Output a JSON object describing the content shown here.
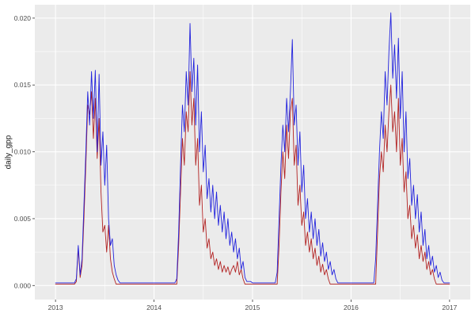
{
  "figure": {
    "bg": "#FFFFFF",
    "panel_bg": "#EBEBEB",
    "grid_major_color": "#FFFFFF",
    "grid_minor_color": "#FFFFFF",
    "tick_mark_color": "#333333",
    "tick_text_color": "#4D4D4D",
    "axis_title_color": "#1A1A1A"
  },
  "chart_data": {
    "type": "line",
    "title": "",
    "xlabel": "",
    "ylabel": "daily_gpp",
    "grid": true,
    "legend_position": "none",
    "xlim": [
      2012.79,
      2017.21
    ],
    "ylim": [
      -0.00105,
      0.021
    ],
    "x_ticks": [
      {
        "v": 2013,
        "label": "2013"
      },
      {
        "v": 2014,
        "label": "2014"
      },
      {
        "v": 2015,
        "label": "2015"
      },
      {
        "v": 2016,
        "label": "2016"
      },
      {
        "v": 2017,
        "label": "2017"
      }
    ],
    "y_ticks": [
      {
        "v": 0.0,
        "label": "0.000"
      },
      {
        "v": 0.005,
        "label": "0.005"
      },
      {
        "v": 0.01,
        "label": "0.010"
      },
      {
        "v": 0.015,
        "label": "0.015"
      },
      {
        "v": 0.02,
        "label": "0.020"
      }
    ],
    "x_minor": [
      2013.5,
      2014.5,
      2015.5,
      2016.5
    ],
    "y_minor": [
      0.0025,
      0.0075,
      0.0125,
      0.0175
    ],
    "x_unit": "year",
    "x0": 2013.0,
    "dx": 0.0192307692,
    "series": [
      {
        "name": "series-red",
        "color": "#B22222",
        "values": [
          0.0001,
          0.0001,
          0.0001,
          0.0001,
          0.0001,
          0.0001,
          0.0001,
          0.0001,
          0.0001,
          0.0001,
          0.0001,
          0.0003,
          0.0028,
          0.0006,
          0.0015,
          0.005,
          0.009,
          0.0135,
          0.0128,
          0.0145,
          0.011,
          0.014,
          0.0095,
          0.0125,
          0.007,
          0.004,
          0.0045,
          0.0025,
          0.0045,
          0.002,
          0.001,
          0.0005,
          0.0001,
          0.0001,
          0.0001,
          0.0001,
          0.0001,
          0.0001,
          0.0001,
          0.0001,
          0.0001,
          0.0001,
          0.0001,
          0.0001,
          0.0001,
          0.0001,
          0.0001,
          0.0001,
          0.0001,
          0.0001,
          0.0001,
          0.0001,
          0.0001,
          0.0001,
          0.0001,
          0.0001,
          0.0001,
          0.0001,
          0.0001,
          0.0001,
          0.0001,
          0.0001,
          0.0001,
          0.0001,
          0.0001,
          0.003,
          0.007,
          0.011,
          0.009,
          0.013,
          0.0115,
          0.016,
          0.012,
          0.014,
          0.009,
          0.011,
          0.006,
          0.0075,
          0.004,
          0.005,
          0.0028,
          0.0035,
          0.002,
          0.0025,
          0.0015,
          0.002,
          0.0012,
          0.0018,
          0.001,
          0.0015,
          0.001,
          0.0014,
          0.0008,
          0.0012,
          0.0015,
          0.001,
          0.0018,
          0.0008,
          0.0012,
          0.0005,
          0.0001,
          0.0001,
          0.0001,
          0.0001,
          0.0001,
          0.0001,
          0.0001,
          0.0001,
          0.0001,
          0.0001,
          0.0001,
          0.0001,
          0.0001,
          0.0001,
          0.0001,
          0.0001,
          0.0001,
          0.0001,
          0.003,
          0.007,
          0.01,
          0.008,
          0.012,
          0.0095,
          0.013,
          0.014,
          0.009,
          0.0105,
          0.006,
          0.0075,
          0.0045,
          0.0055,
          0.003,
          0.004,
          0.0025,
          0.0035,
          0.002,
          0.0028,
          0.0015,
          0.0022,
          0.001,
          0.0016,
          0.0008,
          0.0012,
          0.0005,
          0.0001,
          0.0001,
          0.0001,
          0.0001,
          0.0001,
          0.0001,
          0.0001,
          0.0001,
          0.0001,
          0.0001,
          0.0001,
          0.0001,
          0.0001,
          0.0001,
          0.0001,
          0.0001,
          0.0001,
          0.0001,
          0.0001,
          0.0001,
          0.0001,
          0.0001,
          0.0001,
          0.0001,
          0.0001,
          0.004,
          0.008,
          0.01,
          0.0085,
          0.012,
          0.01,
          0.013,
          0.015,
          0.0115,
          0.013,
          0.01,
          0.014,
          0.009,
          0.011,
          0.007,
          0.0085,
          0.005,
          0.006,
          0.0035,
          0.0045,
          0.0028,
          0.0038,
          0.002,
          0.003,
          0.0018,
          0.0025,
          0.0012,
          0.0018,
          0.0008,
          0.0012,
          0.0005,
          0.0001,
          0.0001,
          0.0001,
          0.0001,
          0.0001,
          0.0001,
          0.0001,
          0.0001
        ]
      },
      {
        "name": "series-blue",
        "color": "#2222DD",
        "values": [
          0.0002,
          0.0002,
          0.0002,
          0.0002,
          0.0002,
          0.0002,
          0.0002,
          0.0002,
          0.0002,
          0.0002,
          0.0002,
          0.0005,
          0.003,
          0.0008,
          0.002,
          0.006,
          0.01,
          0.0145,
          0.012,
          0.016,
          0.0125,
          0.0161,
          0.01,
          0.0158,
          0.009,
          0.0115,
          0.0075,
          0.0105,
          0.005,
          0.003,
          0.0035,
          0.0015,
          0.0008,
          0.0004,
          0.0002,
          0.0002,
          0.0002,
          0.0002,
          0.0002,
          0.0002,
          0.0002,
          0.0002,
          0.0002,
          0.0002,
          0.0002,
          0.0002,
          0.0002,
          0.0002,
          0.0002,
          0.0002,
          0.0002,
          0.0002,
          0.0002,
          0.0002,
          0.0002,
          0.0002,
          0.0002,
          0.0002,
          0.0002,
          0.0002,
          0.0002,
          0.0002,
          0.0002,
          0.0002,
          0.0005,
          0.004,
          0.009,
          0.0135,
          0.0115,
          0.016,
          0.0135,
          0.0196,
          0.0145,
          0.017,
          0.012,
          0.0165,
          0.01,
          0.013,
          0.0085,
          0.0105,
          0.0065,
          0.008,
          0.0055,
          0.0075,
          0.005,
          0.007,
          0.0045,
          0.006,
          0.004,
          0.0055,
          0.0035,
          0.005,
          0.003,
          0.004,
          0.0025,
          0.0035,
          0.002,
          0.0028,
          0.0012,
          0.0018,
          0.0006,
          0.0003,
          0.0003,
          0.0003,
          0.0002,
          0.0002,
          0.0002,
          0.0002,
          0.0002,
          0.0002,
          0.0002,
          0.0002,
          0.0002,
          0.0002,
          0.0002,
          0.0002,
          0.0002,
          0.001,
          0.005,
          0.009,
          0.012,
          0.01,
          0.014,
          0.0115,
          0.0145,
          0.0184,
          0.012,
          0.0135,
          0.009,
          0.0115,
          0.007,
          0.009,
          0.005,
          0.0065,
          0.004,
          0.0055,
          0.0035,
          0.005,
          0.003,
          0.0042,
          0.0022,
          0.0032,
          0.0018,
          0.0025,
          0.0012,
          0.0018,
          0.0008,
          0.0012,
          0.0005,
          0.0002,
          0.0002,
          0.0002,
          0.0002,
          0.0002,
          0.0002,
          0.0002,
          0.0002,
          0.0002,
          0.0002,
          0.0002,
          0.0002,
          0.0002,
          0.0002,
          0.0002,
          0.0002,
          0.0002,
          0.0002,
          0.0002,
          0.0002,
          0.002,
          0.006,
          0.01,
          0.013,
          0.011,
          0.016,
          0.0135,
          0.0175,
          0.0204,
          0.0155,
          0.018,
          0.014,
          0.0185,
          0.0125,
          0.016,
          0.01,
          0.013,
          0.008,
          0.0095,
          0.006,
          0.0075,
          0.005,
          0.0068,
          0.004,
          0.0055,
          0.003,
          0.0042,
          0.002,
          0.003,
          0.0015,
          0.0022,
          0.001,
          0.0015,
          0.0006,
          0.001,
          0.0004,
          0.0002,
          0.0002,
          0.0002,
          0.0002
        ]
      }
    ]
  }
}
